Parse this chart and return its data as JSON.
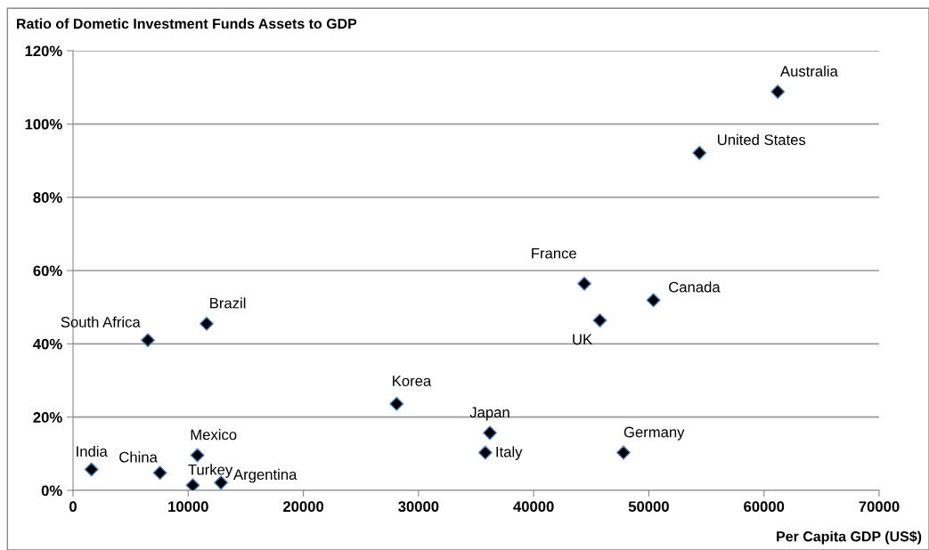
{
  "chart_data": {
    "type": "scatter",
    "title": "Ratio of Dometic Investment Funds Assets to GDP",
    "xlabel": "Per Capita GDP (US$)",
    "series": [
      {
        "color": "#000000",
        "x": [
          1600,
          7550,
          10400,
          10800,
          12850,
          6500,
          11600,
          28100,
          36200,
          35800,
          47800,
          44400,
          45750,
          50400,
          54400,
          61200
        ],
        "values": [
          5.7,
          4.8,
          1.4,
          9.6,
          2.1,
          41.0,
          45.5,
          23.6,
          15.7,
          10.3,
          10.3,
          56.4,
          46.4,
          51.9,
          92.1,
          108.8
        ],
        "value_labels": [
          "India",
          "China",
          "Turkey",
          "Mexico",
          "Argentina",
          "South Africa",
          "Brazil",
          "Korea",
          "Japan",
          "Italy",
          "Germany",
          "France",
          "UK",
          "Canada",
          "United States",
          "Australia"
        ]
      }
    ],
    "marker": "diamond",
    "grid": "y",
    "legend": false,
    "xlim": [
      0,
      70000
    ],
    "xticks": [
      0,
      10000,
      20000,
      30000,
      40000,
      50000,
      60000,
      70000
    ],
    "ylim": [
      0,
      120
    ],
    "yticks": [
      {
        "value": 0,
        "label": "0%"
      },
      {
        "value": 20,
        "label": "20%"
      },
      {
        "value": 40,
        "label": "40%"
      },
      {
        "value": 60,
        "label": "60%"
      },
      {
        "value": 80,
        "label": "80%"
      },
      {
        "value": 100,
        "label": "100%"
      },
      {
        "value": 120,
        "label": "120%"
      }
    ]
  }
}
